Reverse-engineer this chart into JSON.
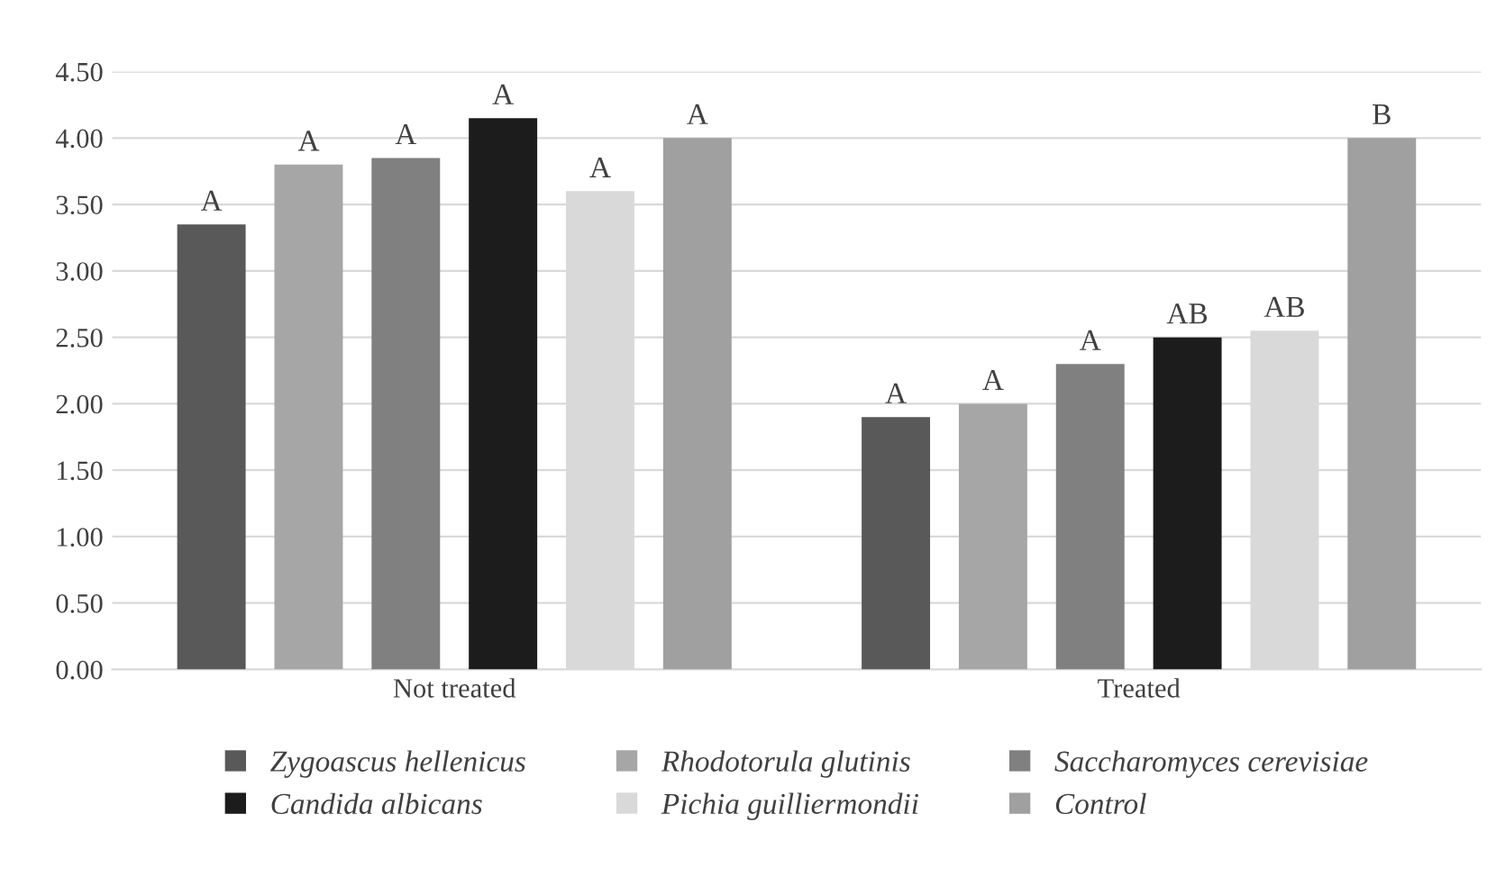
{
  "chart_data": {
    "type": "bar",
    "categories": [
      "Not treated",
      "Treated"
    ],
    "series": [
      {
        "name": "Zygoascus hellenicus",
        "color": "#595959",
        "values": [
          3.35,
          1.9
        ],
        "value_labels": [
          "A",
          "A"
        ]
      },
      {
        "name": "Rhodotorula glutinis",
        "color": "#a6a6a6",
        "values": [
          3.8,
          2.0
        ],
        "value_labels": [
          "A",
          "A"
        ]
      },
      {
        "name": "Saccharomyces cerevisiae",
        "color": "#808080",
        "values": [
          3.85,
          2.3
        ],
        "value_labels": [
          "A",
          "A"
        ]
      },
      {
        "name": "Candida albicans",
        "color": "#1c1c1c",
        "values": [
          4.15,
          2.5
        ],
        "value_labels": [
          "A",
          "AB"
        ]
      },
      {
        "name": "Pichia guilliermondii",
        "color": "#d9d9d9",
        "values": [
          3.6,
          2.55
        ],
        "value_labels": [
          "A",
          "AB"
        ]
      },
      {
        "name": "Control",
        "color": "#a0a0a0",
        "values": [
          4.0,
          4.0
        ],
        "value_labels": [
          "A",
          "B"
        ]
      }
    ],
    "ylim": [
      0,
      4.5
    ],
    "yticks": [
      {
        "value": 0,
        "label": "0.00"
      },
      {
        "value": 0.5,
        "label": "0.50"
      },
      {
        "value": 1,
        "label": "1.00"
      },
      {
        "value": 1.5,
        "label": "1.50"
      },
      {
        "value": 2,
        "label": "2.00"
      },
      {
        "value": 2.5,
        "label": "2.50"
      },
      {
        "value": 3,
        "label": "3.00"
      },
      {
        "value": 3.5,
        "label": "3.50"
      },
      {
        "value": 4,
        "label": "4.00"
      },
      {
        "value": 4.5,
        "label": "4.50"
      }
    ],
    "grid": "y",
    "legend": "bottom"
  }
}
